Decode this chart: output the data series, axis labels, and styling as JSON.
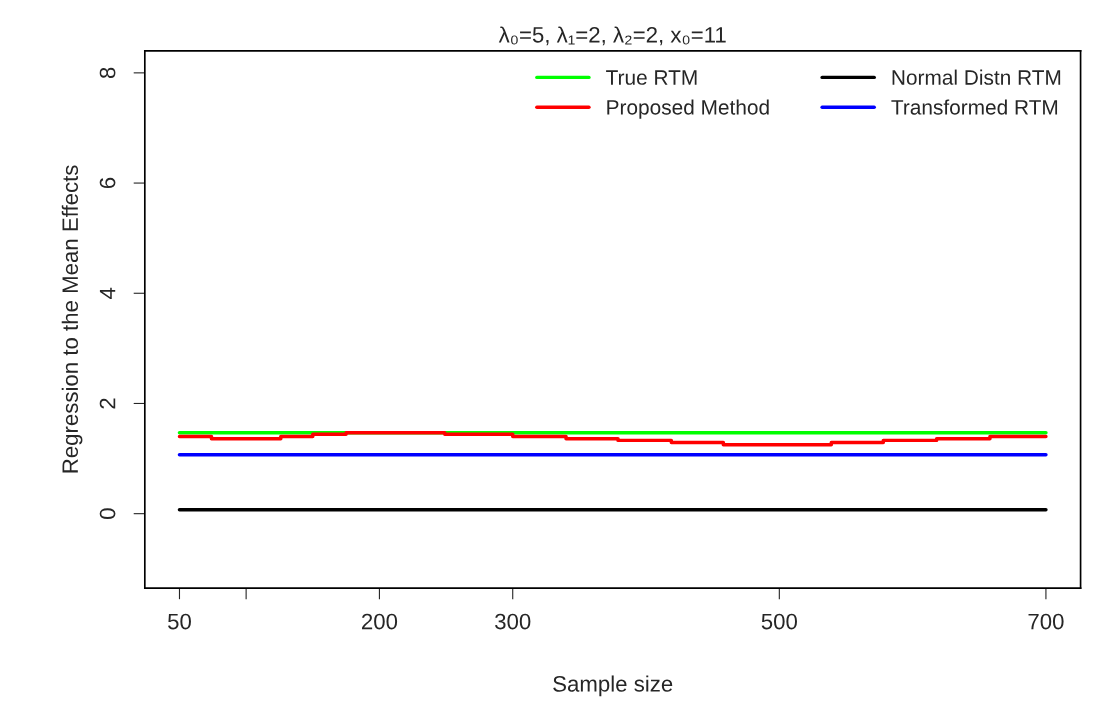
{
  "chart_data": {
    "type": "line",
    "title": "λ₀=5, λ₁=2, λ₂=2, x₀=11",
    "xlabel": "Sample size",
    "ylabel": "Regression to the Mean Effects",
    "xlim": [
      24,
      726
    ],
    "ylim": [
      -1.35,
      8.4
    ],
    "xticks": [
      50,
      {
        "value": 100,
        "label": null
      },
      200,
      300,
      500,
      700
    ],
    "yticks": [
      0,
      2,
      4,
      6,
      8
    ],
    "grid": false,
    "legend": "top right",
    "series": [
      {
        "name": "True RTM",
        "color": "#00ff00",
        "x": [
          50,
          700
        ],
        "values": [
          1.47,
          1.47
        ]
      },
      {
        "name": "Proposed Method",
        "color": "#ff0000",
        "type": "step",
        "x": [
          50,
          74,
          126,
          150,
          175,
          249,
          300,
          340,
          379,
          419,
          458,
          539,
          578,
          618,
          658,
          700
        ],
        "values": [
          1.4,
          1.36,
          1.4,
          1.44,
          1.47,
          1.44,
          1.4,
          1.36,
          1.33,
          1.29,
          1.25,
          1.29,
          1.33,
          1.36,
          1.4,
          1.4
        ]
      },
      {
        "name": "Normal Distn RTM",
        "color": "#000000",
        "x": [
          50,
          700
        ],
        "values": [
          0.07,
          0.07
        ]
      },
      {
        "name": "Transformed RTM",
        "color": "#0000ff",
        "x": [
          50,
          700
        ],
        "values": [
          1.07,
          1.07
        ]
      }
    ]
  }
}
